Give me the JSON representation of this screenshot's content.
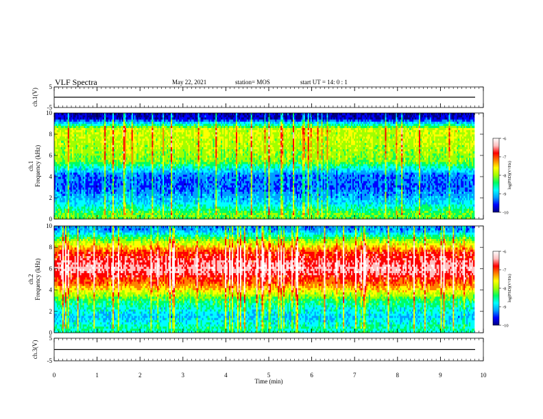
{
  "header": {
    "title": "VLF Spectra",
    "date": "May 22, 2021",
    "station": "station= MOS",
    "start": "start UT =  14: 0  : 1"
  },
  "colors": {
    "axis": "#000000",
    "background": "#ffffff",
    "colormap": [
      "#000080",
      "#0000ff",
      "#00a0ff",
      "#00ffff",
      "#00ff60",
      "#a0ff00",
      "#ffff00",
      "#ff8000",
      "#ff0000",
      "#ffc0c0",
      "#ffffff"
    ]
  },
  "chart_data": [
    {
      "type": "line",
      "panel": "ch1-waveform",
      "ylabel": "ch.1(V)",
      "ylim": [
        -5,
        5
      ],
      "yticks": [
        "5",
        "-5"
      ],
      "xlim": [
        0,
        10
      ],
      "trace_level_v": 0,
      "series": [
        {
          "values": []
        }
      ]
    },
    {
      "type": "heatmap",
      "panel": "ch1-spectrogram",
      "ylabel": "ch.1\nFrequency (kHz)",
      "ylim": [
        0,
        10
      ],
      "yticks": [
        "0",
        "2",
        "4",
        "6",
        "8",
        "10"
      ],
      "xlim": [
        0,
        10
      ],
      "band_profile": [
        {
          "freq_khz": 0.5,
          "level": -8.2
        },
        {
          "freq_khz": 1.5,
          "level": -8.9
        },
        {
          "freq_khz": 3.0,
          "level": -9.4
        },
        {
          "freq_khz": 4.2,
          "level": -9.3
        },
        {
          "freq_khz": 5.5,
          "level": -8.1
        },
        {
          "freq_khz": 7.0,
          "level": -7.9
        },
        {
          "freq_khz": 8.5,
          "level": -7.8
        },
        {
          "freq_khz": 9.5,
          "level": -9.8
        }
      ],
      "colorbar": {
        "label": "log(PSD)(V²/Hz)",
        "ticks": [
          "-6",
          "-7",
          "-8",
          "-9",
          "-10"
        ],
        "range": [
          -10,
          -6
        ]
      }
    },
    {
      "type": "heatmap",
      "panel": "ch2-spectrogram",
      "ylabel": "ch.2\nFrequency (kHz)",
      "ylim": [
        0,
        10
      ],
      "yticks": [
        "0",
        "2",
        "4",
        "6",
        "8",
        "10"
      ],
      "xlim": [
        0,
        10
      ],
      "band_profile": [
        {
          "freq_khz": 0.5,
          "level": -8.6
        },
        {
          "freq_khz": 1.5,
          "level": -9.0
        },
        {
          "freq_khz": 3.0,
          "level": -8.4
        },
        {
          "freq_khz": 4.5,
          "level": -7.2
        },
        {
          "freq_khz": 6.0,
          "level": -6.4
        },
        {
          "freq_khz": 7.5,
          "level": -6.9
        },
        {
          "freq_khz": 8.8,
          "level": -8.2
        },
        {
          "freq_khz": 9.6,
          "level": -9.2
        }
      ],
      "colorbar": {
        "label": "log(PSD)(V²/Hz)",
        "ticks": [
          "-6",
          "-7",
          "-8",
          "-9",
          "-10"
        ],
        "range": [
          -10,
          -6
        ]
      }
    },
    {
      "type": "line",
      "panel": "ch3-waveform",
      "ylabel": "ch.3(V)",
      "ylim": [
        -5,
        5
      ],
      "yticks": [
        "5",
        "-5"
      ],
      "xlim": [
        0,
        10
      ],
      "xlabel": "Time  (min)",
      "xticks": [
        "0",
        "1",
        "2",
        "3",
        "4",
        "5",
        "6",
        "7",
        "8",
        "9",
        "10"
      ],
      "trace_level_v": 0,
      "series": [
        {
          "values": []
        }
      ]
    }
  ]
}
